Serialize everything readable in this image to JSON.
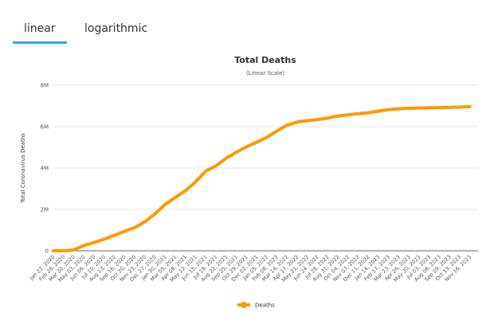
{
  "tabs": [
    "linear",
    "logarithmic"
  ],
  "chart_data": {
    "type": "line",
    "title": "Total Deaths",
    "subtitle": "(Linear Scale)",
    "y_label": "Total Coronavirus Deaths",
    "categories": [
      "Jan 22, 2020",
      "Feb 26, 2020",
      "Mar 30, 2020",
      "May 03, 2020",
      "Jun 06, 2020",
      "Jul 10, 2020",
      "Aug 13, 2020",
      "Sep 16, 2020",
      "Oct 20, 2020",
      "Nov 23, 2020",
      "Dec 27, 2020",
      "Jan 30, 2021",
      "Mar 05, 2021",
      "Apr 08, 2021",
      "May 12, 2021",
      "Jun 15, 2021",
      "Jul 19, 2021",
      "Aug 22, 2021",
      "Sep 25, 2021",
      "Oct 29, 2021",
      "Dec 02, 2021",
      "Jan 05, 2022",
      "Feb 08, 2022",
      "Mar 14, 2022",
      "Apr 17, 2022",
      "May 21, 2022",
      "Jun 24, 2022",
      "Jul 28, 2022",
      "Aug 31, 2022",
      "Oct 04, 2022",
      "Nov 07, 2022",
      "Dec 11, 2022",
      "Jan 14, 2023",
      "Feb 17, 2023",
      "Mar 23, 2023",
      "Apr 26, 2023",
      "May 30, 2023",
      "Jul 03, 2023",
      "Aug 06, 2023",
      "Sep 09, 2023",
      "Oct 13, 2023",
      "Nov 16, 2023"
    ],
    "series": [
      {
        "name": "Deaths",
        "color": "#ff9900",
        "values": [
          0,
          3000,
          40000,
          250000,
          400000,
          560000,
          750000,
          940000,
          1120000,
          1400000,
          1780000,
          2240000,
          2580000,
          2900000,
          3330000,
          3850000,
          4100000,
          4470000,
          4760000,
          5020000,
          5240000,
          5480000,
          5780000,
          6070000,
          6220000,
          6290000,
          6340000,
          6410000,
          6510000,
          6570000,
          6620000,
          6670000,
          6750000,
          6820000,
          6860000,
          6880000,
          6900000,
          6910000,
          6920000,
          6930000,
          6940000,
          6960000
        ]
      }
    ],
    "ylim": [
      0,
      8000000
    ],
    "yticks": [
      0,
      {
        "value": 2000000,
        "label": "2M"
      },
      {
        "value": 4000000,
        "label": "4M"
      },
      {
        "value": 6000000,
        "label": "6M"
      },
      {
        "value": 8000000,
        "label": "8M"
      }
    ],
    "grid": true,
    "legend": "bottom"
  }
}
